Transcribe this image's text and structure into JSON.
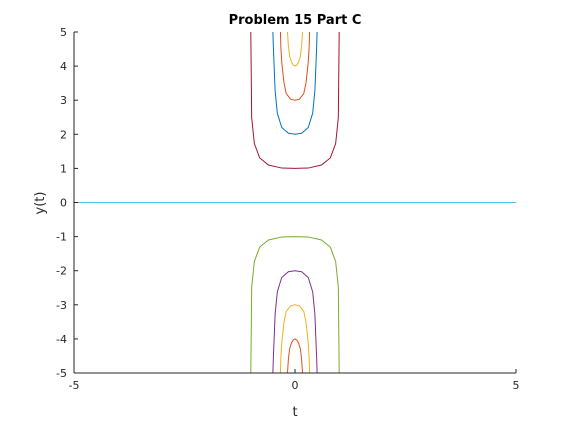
{
  "chart_data": {
    "type": "line",
    "title": "Problem 15 Part C",
    "xlabel": "t",
    "ylabel": "y(t)",
    "xlim": [
      -5,
      5
    ],
    "ylim": [
      -5,
      5
    ],
    "xticks": [
      "-5",
      "0",
      "5"
    ],
    "yticks": [
      "-5",
      "-4",
      "-3",
      "-2",
      "-1",
      "0",
      "1",
      "2",
      "3",
      "4",
      "5"
    ],
    "grid": false,
    "legend": "none",
    "series": [
      {
        "color": "#77ac30",
        "points": [
          [
            -1.0,
            -5
          ],
          [
            -0.98,
            -2.49
          ],
          [
            -0.92,
            -1.73
          ],
          [
            -0.8,
            -1.31
          ],
          [
            -0.6,
            -1.1
          ],
          [
            -0.3,
            -1.01
          ],
          [
            0,
            -1
          ],
          [
            0.3,
            -1.01
          ],
          [
            0.6,
            -1.1
          ],
          [
            0.8,
            -1.31
          ],
          [
            0.92,
            -1.73
          ],
          [
            0.98,
            -2.49
          ],
          [
            1.0,
            -5
          ]
        ]
      },
      {
        "color": "#7e2f8e",
        "points": [
          [
            -0.5,
            -5
          ],
          [
            -0.49,
            -4.57
          ],
          [
            -0.45,
            -3.28
          ],
          [
            -0.4,
            -2.62
          ],
          [
            -0.3,
            -2.2
          ],
          [
            -0.15,
            -2.03
          ],
          [
            0,
            -2
          ],
          [
            0.15,
            -2.03
          ],
          [
            0.3,
            -2.2
          ],
          [
            0.4,
            -2.62
          ],
          [
            0.45,
            -3.28
          ],
          [
            0.49,
            -4.57
          ],
          [
            0.5,
            -5
          ]
        ]
      },
      {
        "color": "#edb120",
        "points": [
          [
            -0.33,
            -5
          ],
          [
            -0.32,
            -4.55
          ],
          [
            -0.3,
            -4.12
          ],
          [
            -0.25,
            -3.52
          ],
          [
            -0.2,
            -3.2
          ],
          [
            -0.1,
            -3.03
          ],
          [
            0,
            -3
          ],
          [
            0.1,
            -3.03
          ],
          [
            0.2,
            -3.2
          ],
          [
            0.25,
            -3.52
          ],
          [
            0.3,
            -4.12
          ],
          [
            0.32,
            -4.55
          ],
          [
            0.33,
            -5
          ]
        ]
      },
      {
        "color": "#d95319",
        "points": [
          [
            -0.17,
            -5
          ],
          [
            -0.15,
            -4.6
          ],
          [
            -0.12,
            -4.28
          ],
          [
            -0.08,
            -4.12
          ],
          [
            -0.04,
            -4.03
          ],
          [
            0,
            -4
          ],
          [
            0.04,
            -4.03
          ],
          [
            0.08,
            -4.12
          ],
          [
            0.12,
            -4.28
          ],
          [
            0.15,
            -4.6
          ],
          [
            0.17,
            -5
          ]
        ]
      },
      {
        "color": "#4dbeee",
        "points": [
          [
            -5,
            0
          ],
          [
            5,
            0
          ]
        ]
      },
      {
        "color": "#a2142f",
        "points": [
          [
            -1.0,
            5
          ],
          [
            -0.98,
            2.49
          ],
          [
            -0.92,
            1.73
          ],
          [
            -0.8,
            1.31
          ],
          [
            -0.6,
            1.1
          ],
          [
            -0.3,
            1.01
          ],
          [
            0,
            1
          ],
          [
            0.3,
            1.01
          ],
          [
            0.6,
            1.1
          ],
          [
            0.8,
            1.31
          ],
          [
            0.92,
            1.73
          ],
          [
            0.98,
            2.49
          ],
          [
            1.0,
            5
          ]
        ]
      },
      {
        "color": "#0072bd",
        "points": [
          [
            -0.5,
            5
          ],
          [
            -0.49,
            4.57
          ],
          [
            -0.45,
            3.28
          ],
          [
            -0.4,
            2.62
          ],
          [
            -0.3,
            2.2
          ],
          [
            -0.15,
            2.03
          ],
          [
            0,
            2
          ],
          [
            0.15,
            2.03
          ],
          [
            0.3,
            2.2
          ],
          [
            0.4,
            2.62
          ],
          [
            0.45,
            3.28
          ],
          [
            0.49,
            4.57
          ],
          [
            0.5,
            5
          ]
        ]
      },
      {
        "color": "#d95319",
        "points": [
          [
            -0.33,
            5
          ],
          [
            -0.32,
            4.55
          ],
          [
            -0.3,
            4.12
          ],
          [
            -0.25,
            3.52
          ],
          [
            -0.2,
            3.2
          ],
          [
            -0.1,
            3.03
          ],
          [
            0,
            3
          ],
          [
            0.1,
            3.03
          ],
          [
            0.2,
            3.2
          ],
          [
            0.25,
            3.52
          ],
          [
            0.3,
            4.12
          ],
          [
            0.32,
            4.55
          ],
          [
            0.33,
            5
          ]
        ]
      },
      {
        "color": "#edb120",
        "points": [
          [
            -0.17,
            5
          ],
          [
            -0.15,
            4.6
          ],
          [
            -0.12,
            4.28
          ],
          [
            -0.08,
            4.12
          ],
          [
            -0.04,
            4.03
          ],
          [
            0,
            4
          ],
          [
            0.04,
            4.03
          ],
          [
            0.08,
            4.12
          ],
          [
            0.12,
            4.28
          ],
          [
            0.15,
            4.6
          ],
          [
            0.17,
            5
          ]
        ]
      }
    ]
  }
}
